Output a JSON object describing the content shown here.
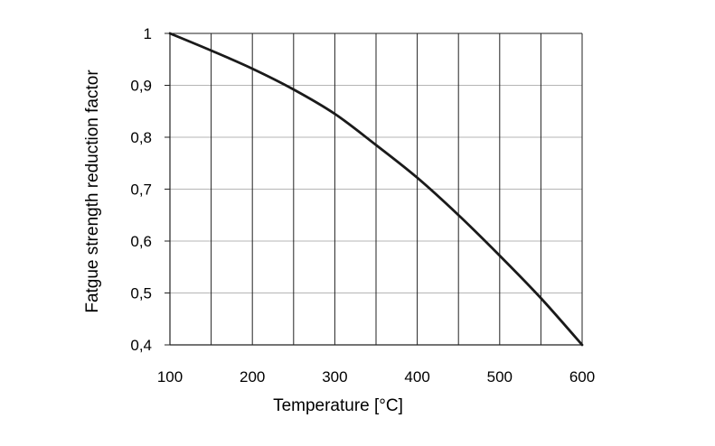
{
  "chart_data": {
    "type": "line",
    "xlabel": "Temperature [°C]",
    "ylabel": "Fatgue strength reduction factor",
    "xlim": [
      100,
      600
    ],
    "ylim": [
      0.4,
      1.0
    ],
    "x_tick_labels": [
      "100",
      "200",
      "300",
      "400",
      "500",
      "600"
    ],
    "x_tick_values": [
      100,
      200,
      300,
      400,
      500,
      600
    ],
    "y_tick_labels": [
      "0,4",
      "0,5",
      "0,6",
      "0,7",
      "0,8",
      "0,9",
      "1"
    ],
    "y_tick_values": [
      0.4,
      0.5,
      0.6,
      0.7,
      0.8,
      0.9,
      1.0
    ],
    "x_gridlines": [
      150,
      200,
      250,
      300,
      350,
      400,
      450,
      500,
      550
    ],
    "grid": true,
    "series": [
      {
        "x": [
          100,
          150,
          200,
          250,
          300,
          350,
          400,
          450,
          500,
          550,
          600
        ],
        "y": [
          1.0,
          0.967,
          0.932,
          0.892,
          0.845,
          0.785,
          0.722,
          0.65,
          0.572,
          0.49,
          0.4
        ],
        "color": "#1a1a1a"
      }
    ]
  }
}
